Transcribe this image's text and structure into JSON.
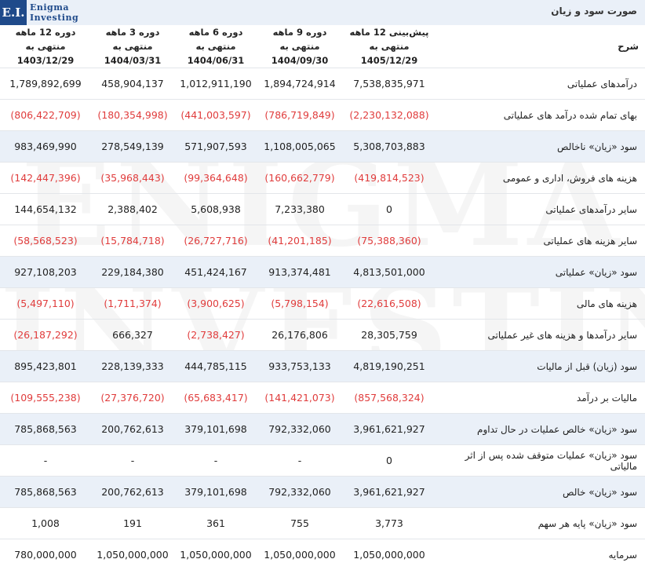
{
  "header": {
    "report_title": "صورت سود و زیان",
    "logo": {
      "mark": "E.I.",
      "line1": "Enigma",
      "line2": "Investing"
    },
    "watermark": "ENIGMA\nINVESTING"
  },
  "table": {
    "desc_header": "شرح",
    "columns": [
      {
        "line1": "دوره 12 ماهه منتهی به",
        "line2": "1403/12/29"
      },
      {
        "line1": "دوره 3 ماهه منتهی به",
        "line2": "1404/03/31"
      },
      {
        "line1": "دوره 6 ماهه منتهی به",
        "line2": "1404/06/31"
      },
      {
        "line1": "دوره 9 ماهه منتهی به",
        "line2": "1404/09/30"
      },
      {
        "line1": "پیش‌بینی 12 ماهه منتهی به",
        "line2": "1405/12/29"
      }
    ],
    "rows": [
      {
        "label": "درآمدهای عملیاتی",
        "highlight": false,
        "values": [
          "1,789,892,699",
          "458,904,137",
          "1,012,911,190",
          "1,894,724,914",
          "7,538,835,971"
        ]
      },
      {
        "label": "بهای تمام شده درآمد های عملیاتی",
        "highlight": false,
        "values": [
          "(806,422,709)",
          "(180,354,998)",
          "(441,003,597)",
          "(786,719,849)",
          "(2,230,132,088)"
        ]
      },
      {
        "label": "سود «زیان» ناخالص",
        "highlight": true,
        "values": [
          "983,469,990",
          "278,549,139",
          "571,907,593",
          "1,108,005,065",
          "5,308,703,883"
        ]
      },
      {
        "label": "هزینه های فروش، اداری و عمومی",
        "highlight": false,
        "values": [
          "(142,447,396)",
          "(35,968,443)",
          "(99,364,648)",
          "(160,662,779)",
          "(419,814,523)"
        ]
      },
      {
        "label": "سایر درآمدهای عملیاتی",
        "highlight": false,
        "values": [
          "144,654,132",
          "2,388,402",
          "5,608,938",
          "7,233,380",
          "0"
        ]
      },
      {
        "label": "سایر هزینه های عملیاتی",
        "highlight": false,
        "values": [
          "(58,568,523)",
          "(15,784,718)",
          "(26,727,716)",
          "(41,201,185)",
          "(75,388,360)"
        ]
      },
      {
        "label": "سود «زیان» عملیاتی",
        "highlight": true,
        "values": [
          "927,108,203",
          "229,184,380",
          "451,424,167",
          "913,374,481",
          "4,813,501,000"
        ]
      },
      {
        "label": "هزینه های مالی",
        "highlight": false,
        "values": [
          "(5,497,110)",
          "(1,711,374)",
          "(3,900,625)",
          "(5,798,154)",
          "(22,616,508)"
        ]
      },
      {
        "label": "سایر درآمدها و هزینه های غیر عملیاتی",
        "highlight": false,
        "values": [
          "(26,187,292)",
          "666,327",
          "(2,738,427)",
          "26,176,806",
          "28,305,759"
        ]
      },
      {
        "label": "سود (زیان) قبل از مالیات",
        "highlight": true,
        "values": [
          "895,423,801",
          "228,139,333",
          "444,785,115",
          "933,753,133",
          "4,819,190,251"
        ]
      },
      {
        "label": "مالیات بر درآمد",
        "highlight": false,
        "values": [
          "(109,555,238)",
          "(27,376,720)",
          "(65,683,417)",
          "(141,421,073)",
          "(857,568,324)"
        ]
      },
      {
        "label": "سود «زیان» خالص عملیات در حال تداوم",
        "highlight": true,
        "values": [
          "785,868,563",
          "200,762,613",
          "379,101,698",
          "792,332,060",
          "3,961,621,927"
        ]
      },
      {
        "label": "سود «زیان» عملیات متوقف شده پس از اثر مالیاتی",
        "highlight": false,
        "values": [
          "-",
          "-",
          "-",
          "-",
          "0"
        ]
      },
      {
        "label": "سود «زیان» خالص",
        "highlight": true,
        "values": [
          "785,868,563",
          "200,762,613",
          "379,101,698",
          "792,332,060",
          "3,961,621,927"
        ]
      },
      {
        "label": "سود «زیان» پایه هر سهم",
        "highlight": false,
        "values": [
          "1,008",
          "191",
          "361",
          "755",
          "3,773"
        ]
      },
      {
        "label": "سرمایه",
        "highlight": false,
        "values": [
          "780,000,000",
          "1,050,000,000",
          "1,050,000,000",
          "1,050,000,000",
          "1,050,000,000"
        ]
      }
    ]
  },
  "colors": {
    "negative": "#e03c3c",
    "highlight_row": "#eaf0f8",
    "brand": "#1f4a8a"
  }
}
